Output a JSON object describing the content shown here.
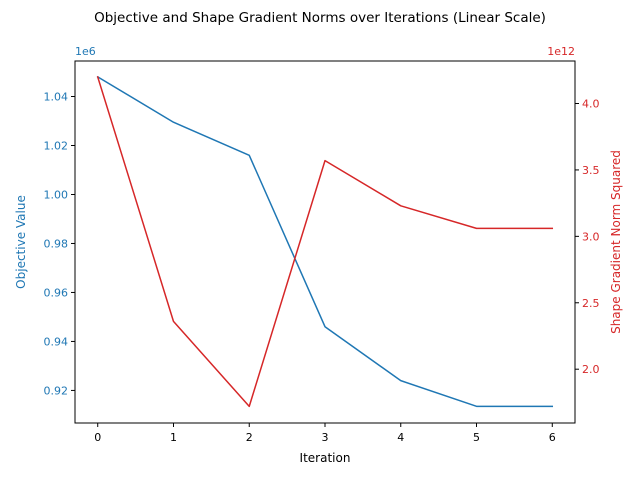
{
  "chart_data": {
    "type": "line",
    "title": "Objective and Shape Gradient Norms over Iterations (Linear Scale)",
    "xlabel": "Iteration",
    "x": [
      0,
      1,
      2,
      3,
      4,
      5,
      6
    ],
    "xlim": [
      -0.3,
      6.3
    ],
    "xticks": [
      0,
      1,
      2,
      3,
      4,
      5,
      6
    ],
    "grid": false,
    "axes": {
      "left": {
        "label": "Objective Value",
        "color": "#1f77b4",
        "offset_text": "1e6",
        "scale": 1000000,
        "ylim": [
          0.9067,
          1.0545
        ],
        "ticks": [
          0.92,
          0.94,
          0.96,
          0.98,
          1.0,
          1.02,
          1.04
        ],
        "tick_labels": [
          "0.92",
          "0.94",
          "0.96",
          "0.98",
          "1.00",
          "1.02",
          "1.04"
        ]
      },
      "right": {
        "label": "Shape Gradient Norm Squared",
        "color": "#d62728",
        "offset_text": "1e12",
        "scale": 1000000000000,
        "ylim": [
          1.595,
          4.32
        ],
        "ticks": [
          2.0,
          2.5,
          3.0,
          3.5,
          4.0
        ],
        "tick_labels": [
          "2.0",
          "2.5",
          "3.0",
          "3.5",
          "4.0"
        ]
      }
    },
    "series": [
      {
        "axis": "left",
        "color": "#1f77b4",
        "values": [
          1048000,
          1029500,
          1016000,
          946000,
          924000,
          913500,
          913500
        ]
      },
      {
        "axis": "right",
        "color": "#d62728",
        "values": [
          4200000000000,
          2360000000000,
          1720000000000,
          3570000000000,
          3230000000000,
          3060000000000,
          3060000000000
        ]
      }
    ]
  }
}
